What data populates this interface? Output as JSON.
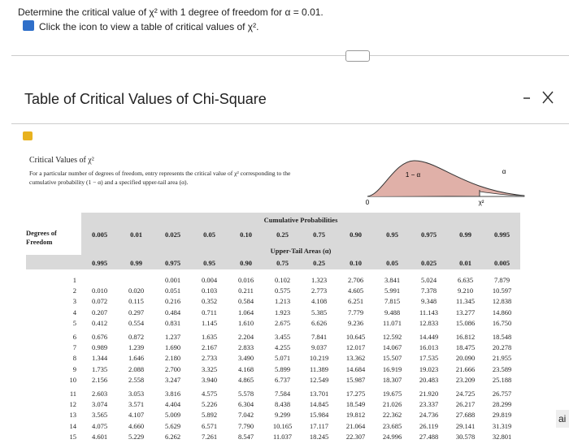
{
  "question": {
    "line1": "Determine the critical value of χ² with 1 degree of freedom for α = 0.01.",
    "line2": "Click the icon to view a table of critical values of χ²."
  },
  "dialog": {
    "title": "Table of Critical Values of Chi-Square",
    "subtitle": "Critical Values of χ²",
    "description": "For a particular number of degrees of freedom, entry represents the critical value of χ² corresponding to the cumulative probability (1 − α) and a specified upper-tail area (α).",
    "graph": {
      "left_label": "1 − α",
      "right_label": "α",
      "x_label": "χ²",
      "origin": "0"
    }
  },
  "table": {
    "cumulative_header": "Cumulative Probabilities",
    "upper_header": "Upper-Tail Areas (α)",
    "df_header": "Degrees of Freedom",
    "cumulative": [
      "0.005",
      "0.01",
      "0.025",
      "0.05",
      "0.10",
      "0.25",
      "0.75",
      "0.90",
      "0.95",
      "0.975",
      "0.99",
      "0.995"
    ],
    "upper": [
      "0.995",
      "0.99",
      "0.975",
      "0.95",
      "0.90",
      "0.75",
      "0.25",
      "0.10",
      "0.05",
      "0.025",
      "0.01",
      "0.005"
    ],
    "rows": [
      {
        "df": "1",
        "values": [
          null,
          null,
          "0.001",
          "0.004",
          "0.016",
          "0.102",
          "1.323",
          "2.706",
          "3.841",
          "5.024",
          "6.635",
          "7.879"
        ]
      },
      {
        "df": "2",
        "values": [
          "0.010",
          "0.020",
          "0.051",
          "0.103",
          "0.211",
          "0.575",
          "2.773",
          "4.605",
          "5.991",
          "7.378",
          "9.210",
          "10.597"
        ]
      },
      {
        "df": "3",
        "values": [
          "0.072",
          "0.115",
          "0.216",
          "0.352",
          "0.584",
          "1.213",
          "4.108",
          "6.251",
          "7.815",
          "9.348",
          "11.345",
          "12.838"
        ]
      },
      {
        "df": "4",
        "values": [
          "0.207",
          "0.297",
          "0.484",
          "0.711",
          "1.064",
          "1.923",
          "5.385",
          "7.779",
          "9.488",
          "11.143",
          "13.277",
          "14.860"
        ]
      },
      {
        "df": "5",
        "values": [
          "0.412",
          "0.554",
          "0.831",
          "1.145",
          "1.610",
          "2.675",
          "6.626",
          "9.236",
          "11.071",
          "12.833",
          "15.086",
          "16.750"
        ]
      },
      {
        "df": "6",
        "values": [
          "0.676",
          "0.872",
          "1.237",
          "1.635",
          "2.204",
          "3.455",
          "7.841",
          "10.645",
          "12.592",
          "14.449",
          "16.812",
          "18.548"
        ]
      },
      {
        "df": "7",
        "values": [
          "0.989",
          "1.239",
          "1.690",
          "2.167",
          "2.833",
          "4.255",
          "9.037",
          "12.017",
          "14.067",
          "16.013",
          "18.475",
          "20.278"
        ]
      },
      {
        "df": "8",
        "values": [
          "1.344",
          "1.646",
          "2.180",
          "2.733",
          "3.490",
          "5.071",
          "10.219",
          "13.362",
          "15.507",
          "17.535",
          "20.090",
          "21.955"
        ]
      },
      {
        "df": "9",
        "values": [
          "1.735",
          "2.088",
          "2.700",
          "3.325",
          "4.168",
          "5.899",
          "11.389",
          "14.684",
          "16.919",
          "19.023",
          "21.666",
          "23.589"
        ]
      },
      {
        "df": "10",
        "values": [
          "2.156",
          "2.558",
          "3.247",
          "3.940",
          "4.865",
          "6.737",
          "12.549",
          "15.987",
          "18.307",
          "20.483",
          "23.209",
          "25.188"
        ]
      },
      {
        "df": "11",
        "values": [
          "2.603",
          "3.053",
          "3.816",
          "4.575",
          "5.578",
          "7.584",
          "13.701",
          "17.275",
          "19.675",
          "21.920",
          "24.725",
          "26.757"
        ]
      },
      {
        "df": "12",
        "values": [
          "3.074",
          "3.571",
          "4.404",
          "5.226",
          "6.304",
          "8.438",
          "14.845",
          "18.549",
          "21.026",
          "23.337",
          "26.217",
          "28.299"
        ]
      },
      {
        "df": "13",
        "values": [
          "3.565",
          "4.107",
          "5.009",
          "5.892",
          "7.042",
          "9.299",
          "15.984",
          "19.812",
          "22.362",
          "24.736",
          "27.688",
          "29.819"
        ]
      },
      {
        "df": "14",
        "values": [
          "4.075",
          "4.660",
          "5.629",
          "6.571",
          "7.790",
          "10.165",
          "17.117",
          "21.064",
          "23.685",
          "26.119",
          "29.141",
          "31.319"
        ]
      },
      {
        "df": "15",
        "values": [
          "4.601",
          "5.229",
          "6.262",
          "7.261",
          "8.547",
          "11.037",
          "18.245",
          "22.307",
          "24.996",
          "27.488",
          "30.578",
          "32.801"
        ]
      }
    ]
  },
  "side_text": "ai"
}
